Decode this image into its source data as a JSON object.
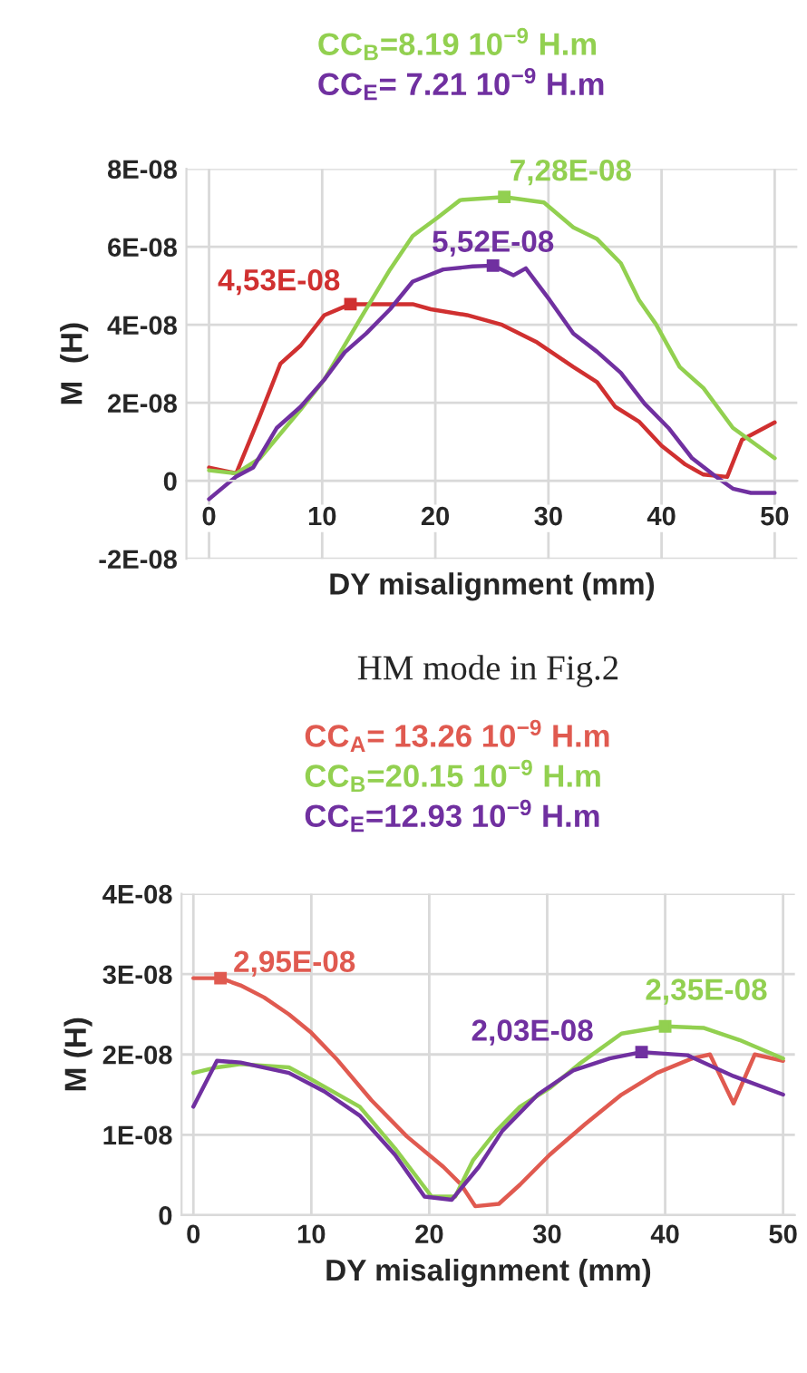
{
  "chart_data": [
    {
      "type": "line",
      "xlabel": "DY misalignment (mm)",
      "ylabel": "M  (H)",
      "xlim": [
        -2,
        52
      ],
      "ylim": [
        -2e-08,
        8e-08
      ],
      "xticks": [
        0,
        10,
        20,
        30,
        40,
        50
      ],
      "yticks": [
        {
          "value": -2e-08,
          "label": "-2E-08"
        },
        0,
        {
          "value": 2e-08,
          "label": "2E-08"
        },
        {
          "value": 4e-08,
          "label": "4E-08"
        },
        {
          "value": 6e-08,
          "label": "6E-08"
        },
        {
          "value": 8e-08,
          "label": "8E-08"
        }
      ],
      "grid": true,
      "legend": "top",
      "series": [
        {
          "color": "#d03030",
          "x": [
            0,
            2.4,
            4.5,
            6.3,
            8.1,
            10.2,
            12.5,
            18,
            19.6,
            22.8,
            25.9,
            29,
            32.2,
            34.3,
            35.9,
            38,
            40,
            42.1,
            43.7,
            45.8,
            47.1,
            50
          ],
          "values": [
            3.4e-09,
            1.9e-09,
            1.67e-08,
            3e-08,
            3.47e-08,
            4.25e-08,
            4.53e-08,
            4.53e-08,
            4.4e-08,
            4.25e-08,
            4e-08,
            3.55e-08,
            2.92e-08,
            2.53e-08,
            1.9e-08,
            1.52e-08,
            9e-09,
            4.2e-09,
            1.6e-09,
            1e-09,
            1.05e-08,
            1.5e-08
          ]
        },
        {
          "name": "CC$_{B}$=8.19 10$^{−9}$ H.m",
          "color": "#92d050",
          "x": [
            0,
            2.4,
            4.5,
            8.1,
            10.2,
            13.4,
            16,
            18,
            20.2,
            22.2,
            26.1,
            29.6,
            32.2,
            34.3,
            36.4,
            38,
            39.5,
            41.6,
            43.7,
            46.3,
            50
          ],
          "values": [
            2.7e-09,
            1.9e-09,
            5.8e-09,
            1.83e-08,
            2.6e-08,
            4.17e-08,
            5.42e-08,
            6.28e-08,
            6.75e-08,
            7.2e-08,
            7.28e-08,
            7.14e-08,
            6.5e-08,
            6.2e-08,
            5.58e-08,
            4.64e-08,
            4.02e-08,
            2.92e-08,
            2.38e-08,
            1.36e-08,
            5.8e-09
          ]
        },
        {
          "name": "CC$_{E}$= 7.21 10$^{−9}$ H.m",
          "color": "#7030a0",
          "x": [
            0,
            2.4,
            3.9,
            6,
            8.1,
            10.2,
            12,
            13.9,
            16,
            18,
            20.7,
            23.3,
            25.1,
            26.9,
            28,
            30.1,
            32.2,
            34.3,
            36.4,
            38.5,
            40.6,
            42.7,
            44.8,
            46.3,
            47.9,
            50
          ],
          "values": [
            -4.7e-09,
            1.1e-09,
            3.4e-09,
            1.36e-08,
            1.9e-08,
            2.6e-08,
            3.3e-08,
            3.78e-08,
            4.4e-08,
            5.11e-08,
            5.42e-08,
            5.5e-08,
            5.52e-08,
            5.27e-08,
            5.45e-08,
            4.64e-08,
            3.78e-08,
            3.31e-08,
            2.77e-08,
            1.98e-08,
            1.36e-08,
            5.8e-09,
            1.1e-09,
            -2e-09,
            -3.1e-09,
            -3.1e-09
          ]
        }
      ],
      "annotations": [
        {
          "text": "4,53E-08",
          "x": 12.5,
          "y": 4.53e-08
        },
        {
          "text": "7,28E-08",
          "x": 26.1,
          "y": 7.28e-08
        },
        {
          "text": "5,52E-08",
          "x": 25.1,
          "y": 5.52e-08
        }
      ]
    },
    {
      "type": "line",
      "title": "HM mode in Fig.2",
      "xlabel": "DY misalignment (mm)",
      "ylabel": "M (H)",
      "xlim": [
        -1,
        51
      ],
      "ylim": [
        0,
        4e-08
      ],
      "xticks": [
        0,
        10,
        20,
        30,
        40,
        50
      ],
      "yticks": [
        0,
        {
          "value": 1e-08,
          "label": "1E-08"
        },
        {
          "value": 2e-08,
          "label": "2E-08"
        },
        {
          "value": 3e-08,
          "label": "3E-08"
        },
        {
          "value": 4e-08,
          "label": "4E-08"
        }
      ],
      "grid": true,
      "legend": "top",
      "series": [
        {
          "name": "CC$_{A}$= 13.26 10$^{−9}$ H.m",
          "color": "#e05a50",
          "x": [
            0,
            2.3,
            4,
            6,
            8.1,
            10,
            12.1,
            15.1,
            18.1,
            21.2,
            22.7,
            23.9,
            25.9,
            27.7,
            30.2,
            33.2,
            36.3,
            39.3,
            42.3,
            43.8,
            45.8,
            47.6,
            50
          ],
          "values": [
            2.95e-08,
            2.95e-08,
            2.86e-08,
            2.71e-08,
            2.5e-08,
            2.27e-08,
            1.95e-08,
            1.43e-08,
            9.8e-09,
            6e-09,
            3.8e-09,
            1.1e-09,
            1.4e-09,
            3.8e-09,
            7.5e-09,
            1.13e-08,
            1.5e-08,
            1.77e-08,
            1.95e-08,
            2e-08,
            1.39e-08,
            2e-08,
            1.92e-08
          ]
        },
        {
          "name": "CC$_{B}$=20.15 10$^{−9}$ H.m",
          "color": "#92d050",
          "x": [
            0,
            2,
            4,
            8.1,
            10,
            14.1,
            17.1,
            20.2,
            22.2,
            23.7,
            25.7,
            27.7,
            30.2,
            32.7,
            36.3,
            40,
            43.3,
            46.3,
            50
          ],
          "values": [
            1.77e-08,
            1.84e-08,
            1.88e-08,
            1.84e-08,
            1.69e-08,
            1.35e-08,
            8.3e-09,
            2.3e-09,
            2.3e-09,
            6.8e-09,
            1.05e-08,
            1.35e-08,
            1.58e-08,
            1.88e-08,
            2.26e-08,
            2.35e-08,
            2.33e-08,
            2.18e-08,
            1.95e-08
          ]
        },
        {
          "name": "CC$_{E}$=12.93 10$^{−9}$ H.m",
          "color": "#7030a0",
          "x": [
            0,
            2,
            4,
            8.1,
            11.1,
            14.1,
            17.1,
            19.6,
            21.9,
            24.2,
            26.2,
            29.2,
            32.2,
            35.3,
            38,
            41.9,
            45.8,
            50
          ],
          "values": [
            1.35e-08,
            1.92e-08,
            1.9e-08,
            1.77e-08,
            1.54e-08,
            1.24e-08,
            7.5e-09,
            2.3e-09,
            1.9e-09,
            6e-09,
            1.05e-08,
            1.5e-08,
            1.8e-08,
            1.95e-08,
            2.03e-08,
            1.99e-08,
            1.73e-08,
            1.5e-08
          ]
        }
      ],
      "annotations": [
        {
          "text": "2,95E-08",
          "x": 2.3,
          "y": 2.95e-08
        },
        {
          "text": "2,35E-08",
          "x": 40,
          "y": 2.35e-08
        },
        {
          "text": "2,03E-08",
          "x": 38,
          "y": 2.03e-08
        }
      ]
    }
  ]
}
